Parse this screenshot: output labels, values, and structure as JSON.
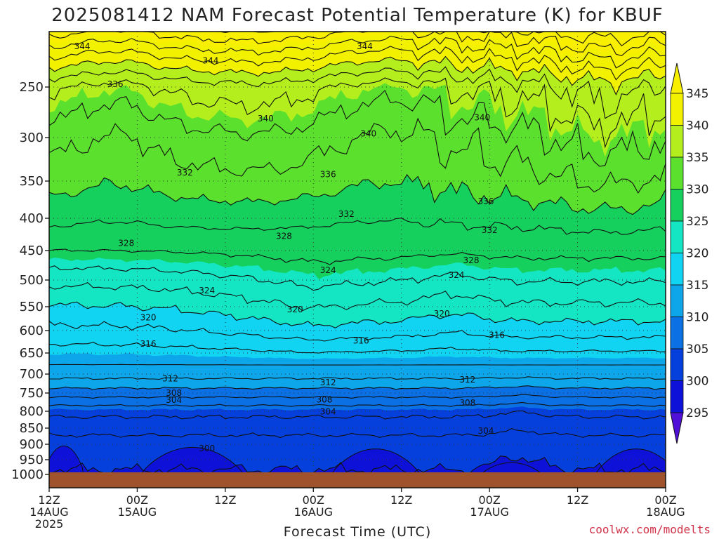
{
  "chart_data": {
    "type": "heatmap",
    "title": "2025081412 NAM Forecast Potential Temperature (K) for KBUF",
    "xlabel": "Forecast Time (UTC)",
    "ylabel": "",
    "credit": "coolwx.com/modelts",
    "y_axis": {
      "ticks": [
        250,
        300,
        350,
        400,
        450,
        500,
        550,
        600,
        650,
        700,
        750,
        800,
        850,
        900,
        950,
        1000
      ],
      "range": [
        200,
        1030
      ],
      "inverted": true
    },
    "x_axis": {
      "range": [
        "2025-08-14 12Z",
        "2025-08-18 00Z"
      ],
      "ticks": [
        {
          "hour": "12Z",
          "date": "14AUG",
          "year": "2025"
        },
        {
          "hour": "00Z",
          "date": "15AUG",
          "year": ""
        },
        {
          "hour": "12Z",
          "date": "",
          "year": ""
        },
        {
          "hour": "00Z",
          "date": "16AUG",
          "year": ""
        },
        {
          "hour": "12Z",
          "date": "",
          "year": ""
        },
        {
          "hour": "00Z",
          "date": "17AUG",
          "year": ""
        },
        {
          "hour": "12Z",
          "date": "",
          "year": ""
        },
        {
          "hour": "00Z",
          "date": "18AUG",
          "year": ""
        }
      ]
    },
    "grid": true,
    "colorbar": {
      "ticks": [
        345,
        340,
        335,
        330,
        325,
        320,
        315,
        310,
        305,
        300,
        295
      ],
      "bands": [
        {
          "from": 340,
          "to": 345,
          "color": "#f2f200"
        },
        {
          "from": 335,
          "to": 340,
          "color": "#b4ee1c"
        },
        {
          "from": 330,
          "to": 335,
          "color": "#5ce02e"
        },
        {
          "from": 325,
          "to": 330,
          "color": "#16d05e"
        },
        {
          "from": 320,
          "to": 325,
          "color": "#14e6c4"
        },
        {
          "from": 315,
          "to": 320,
          "color": "#10d4f2"
        },
        {
          "from": 310,
          "to": 315,
          "color": "#0ea6ea"
        },
        {
          "from": 305,
          "to": 310,
          "color": "#0a70e4"
        },
        {
          "from": 300,
          "to": 305,
          "color": "#0540dc"
        },
        {
          "from": 295,
          "to": 300,
          "color": "#0e12d8"
        }
      ],
      "over_color": "#f8f000",
      "under_color": "#5010d8"
    },
    "ground_color": "#a0522d",
    "contour_labels": [
      {
        "value": 344,
        "hour": 4.5,
        "pressure": 213
      },
      {
        "value": 344,
        "hour": 22,
        "pressure": 226
      },
      {
        "value": 344,
        "hour": 43,
        "pressure": 213
      },
      {
        "value": 336,
        "hour": 9,
        "pressure": 247
      },
      {
        "value": 340,
        "hour": 29.5,
        "pressure": 281
      },
      {
        "value": 340,
        "hour": 43.5,
        "pressure": 296
      },
      {
        "value": 340,
        "hour": 59,
        "pressure": 280
      },
      {
        "value": 332,
        "hour": 18.5,
        "pressure": 340
      },
      {
        "value": 336,
        "hour": 38,
        "pressure": 342
      },
      {
        "value": 336,
        "hour": 59.5,
        "pressure": 377
      },
      {
        "value": 332,
        "hour": 40.5,
        "pressure": 394
      },
      {
        "value": 332,
        "hour": 60,
        "pressure": 418
      },
      {
        "value": 328,
        "hour": 10.5,
        "pressure": 438
      },
      {
        "value": 328,
        "hour": 32,
        "pressure": 427
      },
      {
        "value": 328,
        "hour": 57.5,
        "pressure": 466
      },
      {
        "value": 324,
        "hour": 38,
        "pressure": 483
      },
      {
        "value": 324,
        "hour": 55.5,
        "pressure": 491
      },
      {
        "value": 324,
        "hour": 21.5,
        "pressure": 519
      },
      {
        "value": 320,
        "hour": 13.5,
        "pressure": 572
      },
      {
        "value": 320,
        "hour": 33.5,
        "pressure": 555
      },
      {
        "value": 320,
        "hour": 53.5,
        "pressure": 564
      },
      {
        "value": 316,
        "hour": 13.5,
        "pressure": 629
      },
      {
        "value": 316,
        "hour": 42.5,
        "pressure": 622
      },
      {
        "value": 316,
        "hour": 61,
        "pressure": 609
      },
      {
        "value": 312,
        "hour": 16.5,
        "pressure": 711
      },
      {
        "value": 312,
        "hour": 38,
        "pressure": 721
      },
      {
        "value": 312,
        "hour": 57,
        "pressure": 714
      },
      {
        "value": 308,
        "hour": 17,
        "pressure": 749
      },
      {
        "value": 308,
        "hour": 37.5,
        "pressure": 767
      },
      {
        "value": 308,
        "hour": 57,
        "pressure": 776
      },
      {
        "value": 304,
        "hour": 17,
        "pressure": 768
      },
      {
        "value": 304,
        "hour": 38,
        "pressure": 800
      },
      {
        "value": 304,
        "hour": 59.5,
        "pressure": 858
      },
      {
        "value": 300,
        "hour": 21.5,
        "pressure": 913
      }
    ]
  }
}
